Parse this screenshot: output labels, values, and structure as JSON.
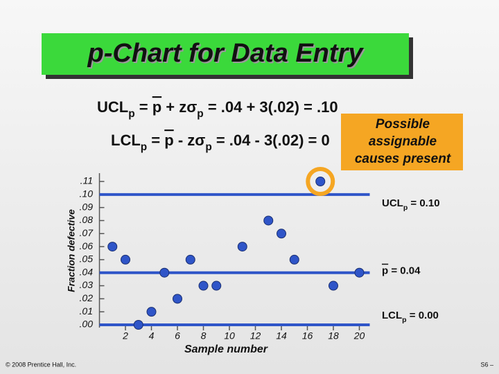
{
  "chart_data": {
    "type": "scatter",
    "title": "p-Chart for Data Entry",
    "formulas": [
      [
        {
          "text": "UCL"
        },
        {
          "text": "p",
          "style": "sub"
        },
        {
          "text": " = "
        },
        {
          "text": "p",
          "style": "bar"
        },
        {
          "text": " + z"
        },
        {
          "text": "σ"
        },
        {
          "text": "p",
          "style": "sub"
        },
        {
          "text": " = .04 + 3(.02) = .10"
        }
      ],
      [
        {
          "text": "LCL"
        },
        {
          "text": "p",
          "style": "sub"
        },
        {
          "text": " = "
        },
        {
          "text": "p",
          "style": "bar"
        },
        {
          "text": " - z"
        },
        {
          "text": "σ"
        },
        {
          "text": "p",
          "style": "sub"
        },
        {
          "text": " = .04 - 3(.02) = 0"
        }
      ]
    ],
    "x": [
      1,
      2,
      3,
      4,
      5,
      6,
      7,
      8,
      9,
      11,
      13,
      14,
      15,
      17,
      18,
      20
    ],
    "values": [
      0.06,
      0.05,
      0.0,
      0.01,
      0.04,
      0.02,
      0.05,
      0.03,
      0.03,
      0.06,
      0.08,
      0.07,
      0.05,
      0.11,
      0.03,
      0.04
    ],
    "color": "#2f55c8",
    "xlim": [
      0,
      20.8
    ],
    "ylim": [
      0,
      0.11
    ],
    "xticks": [
      2,
      4,
      6,
      8,
      10,
      12,
      14,
      16,
      18,
      20
    ],
    "yticks": [
      {
        "value": 0.11,
        "label": ".11"
      },
      {
        "value": 0.1,
        "label": ".10"
      },
      {
        "value": 0.09,
        "label": ".09"
      },
      {
        "value": 0.08,
        "label": ".08"
      },
      {
        "value": 0.07,
        "label": ".07"
      },
      {
        "value": 0.06,
        "label": ".06"
      },
      {
        "value": 0.05,
        "label": ".05"
      },
      {
        "value": 0.04,
        "label": ".04"
      },
      {
        "value": 0.03,
        "label": ".03"
      },
      {
        "value": 0.02,
        "label": ".02"
      },
      {
        "value": 0.01,
        "label": ".01"
      },
      {
        "value": 0.0,
        "label": ".00"
      }
    ],
    "x_label": "Sample number",
    "y_label": "Fraction defective",
    "reference_lines": [
      {
        "value": 0.1,
        "label": [
          {
            "text": "UCL"
          },
          {
            "text": "p",
            "style": "sub"
          },
          {
            "text": " = 0.10"
          }
        ]
      },
      {
        "value": 0.04,
        "label": [
          {
            "text": "p",
            "style": "bar"
          },
          {
            "text": " =  0.04"
          }
        ]
      },
      {
        "value": 0.0,
        "label": [
          {
            "text": "LCL"
          },
          {
            "text": "p",
            "style": "sub"
          },
          {
            "text": " = 0.00"
          }
        ]
      }
    ],
    "annotation": {
      "lines": [
        "Possible",
        "assignable",
        "causes present"
      ],
      "color": "#f5a623",
      "point": 13
    }
  },
  "footer": {
    "copyright": "© 2008 Prentice Hall, Inc.",
    "page": "S6 –"
  }
}
